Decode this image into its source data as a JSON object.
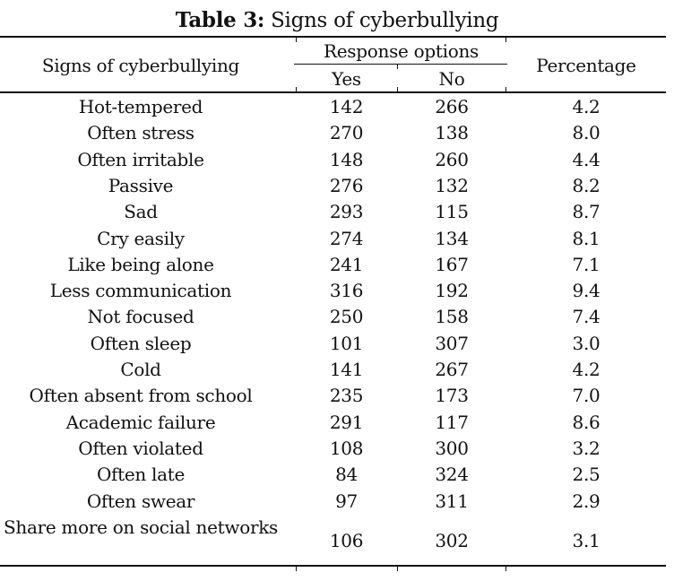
{
  "title": {
    "label": "Table 3:",
    "text": " Signs of cyberbullying"
  },
  "header": {
    "col_sign": "Signs of cyberbullying",
    "group": "Response options",
    "col_yes": "Yes",
    "col_no": "No",
    "col_pct": "Percentage"
  },
  "rows": [
    {
      "sign": "Hot-tempered",
      "yes": "142",
      "no": "266",
      "pct": "4.2"
    },
    {
      "sign": "Often stress",
      "yes": "270",
      "no": "138",
      "pct": "8.0"
    },
    {
      "sign": "Often irritable",
      "yes": "148",
      "no": "260",
      "pct": "4.4"
    },
    {
      "sign": "Passive",
      "yes": "276",
      "no": "132",
      "pct": "8.2"
    },
    {
      "sign": "Sad",
      "yes": "293",
      "no": "115",
      "pct": "8.7"
    },
    {
      "sign": "Cry easily",
      "yes": "274",
      "no": "134",
      "pct": "8.1"
    },
    {
      "sign": "Like being alone",
      "yes": "241",
      "no": "167",
      "pct": "7.1"
    },
    {
      "sign": "Less communication",
      "yes": "316",
      "no": "192",
      "pct": "9.4"
    },
    {
      "sign": "Not focused",
      "yes": "250",
      "no": "158",
      "pct": "7.4"
    },
    {
      "sign": "Often sleep",
      "yes": "101",
      "no": "307",
      "pct": "3.0"
    },
    {
      "sign": "Cold",
      "yes": "141",
      "no": "267",
      "pct": "4.2"
    },
    {
      "sign": "Often absent from school",
      "yes": "235",
      "no": "173",
      "pct": "7.0"
    },
    {
      "sign": "Academic failure",
      "yes": "291",
      "no": "117",
      "pct": "8.6"
    },
    {
      "sign": "Often violated",
      "yes": "108",
      "no": "300",
      "pct": "3.2"
    },
    {
      "sign": "Often late",
      "yes": "84",
      "no": "324",
      "pct": "2.5"
    },
    {
      "sign": "Often swear",
      "yes": "97",
      "no": "311",
      "pct": "2.9"
    },
    {
      "sign": "Share more on social networks",
      "yes": "106",
      "no": "302",
      "pct": "3.1"
    }
  ]
}
